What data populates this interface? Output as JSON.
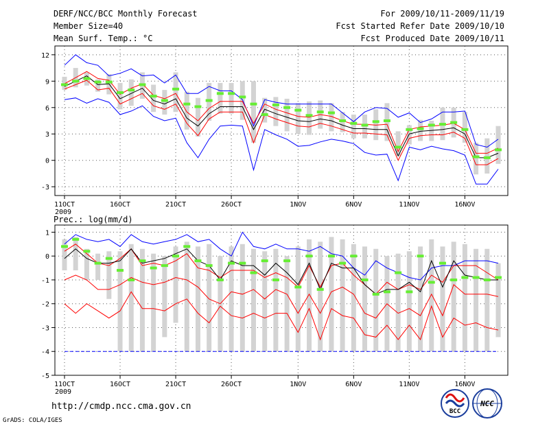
{
  "header": {
    "left": [
      "DERF/NCC/BCC Monthly Forecast",
      "Member Size=40",
      "Mean Surf. Temp.: °C"
    ],
    "right": [
      "For 2009/10/11-2009/11/19",
      "Fcst Started Refer Date 2009/10/10",
      "Fcst Produced Date 2009/10/11"
    ]
  },
  "precip_label": "Prec.: log(mm/d)",
  "url": "http://cmdp.ncc.cma.gov.cn",
  "credit": "GrADS: COLA/IGES",
  "logo_left": "BCC",
  "logo_right": "NCC",
  "colors": {
    "ensemble": "#0000ff",
    "spread": "#ff0000",
    "mean": "#000000",
    "bar": "#d3d3d3",
    "member": "#66ee33"
  },
  "chart_data": [
    {
      "type": "line",
      "title": "Mean Surf. Temp.: °C",
      "x_labels": [
        "11OCT",
        "16OCT",
        "21OCT",
        "26OCT",
        "1NOV",
        "6NOV",
        "11NOV",
        "16NOV"
      ],
      "x_label_days": [
        1,
        6,
        11,
        16,
        22,
        27,
        32,
        37
      ],
      "year_label": "2009",
      "ylim": [
        -4,
        13
      ],
      "yticks": [
        -3,
        0,
        3,
        6,
        9,
        12
      ],
      "days": 40,
      "series": [
        {
          "name": "max",
          "color": "#0000ff",
          "values": [
            10.8,
            12.0,
            11.1,
            10.8,
            9.6,
            9.9,
            10.4,
            9.6,
            9.7,
            8.8,
            9.7,
            7.6,
            7.6,
            8.4,
            7.9,
            7.9,
            6.9,
            3.9,
            6.9,
            6.6,
            6.4,
            6.4,
            6.4,
            6.4,
            6.4,
            5.4,
            4.4,
            5.5,
            6.0,
            5.9,
            4.9,
            5.4,
            4.3,
            4.7,
            5.5,
            5.5,
            5.6,
            1.8,
            1.5,
            2.4
          ]
        },
        {
          "name": "upper",
          "color": "#ff0000",
          "values": [
            8.7,
            9.4,
            10.1,
            9.3,
            9.1,
            7.5,
            8.2,
            8.7,
            7.4,
            7.0,
            7.6,
            5.5,
            4.5,
            5.9,
            6.7,
            6.7,
            6.7,
            4.2,
            6.4,
            5.8,
            5.4,
            5.0,
            4.9,
            5.2,
            5.0,
            4.5,
            4.1,
            4.1,
            4.0,
            4.1,
            1.0,
            3.5,
            3.8,
            3.9,
            4.0,
            4.2,
            3.5,
            0.8,
            0.8,
            1.4
          ]
        },
        {
          "name": "mean",
          "color": "#000000",
          "values": [
            8.4,
            9.0,
            9.6,
            8.6,
            8.7,
            7.0,
            7.6,
            8.2,
            6.8,
            6.4,
            7.0,
            4.8,
            3.9,
            5.3,
            6.1,
            6.1,
            6.1,
            3.5,
            5.8,
            5.3,
            4.9,
            4.5,
            4.4,
            4.7,
            4.5,
            4.0,
            3.6,
            3.6,
            3.5,
            3.5,
            0.5,
            3.0,
            3.3,
            3.4,
            3.5,
            3.7,
            3.0,
            0.3,
            0.3,
            0.8
          ]
        },
        {
          "name": "lower",
          "color": "#ff0000",
          "values": [
            8.1,
            8.6,
            9.1,
            8.0,
            8.2,
            6.4,
            7.0,
            7.6,
            6.2,
            5.8,
            6.4,
            4.2,
            2.8,
            4.7,
            5.5,
            5.5,
            5.5,
            2.0,
            5.2,
            4.7,
            4.3,
            3.9,
            3.8,
            4.2,
            3.9,
            3.5,
            3.1,
            3.1,
            3.0,
            2.9,
            0.0,
            2.5,
            2.8,
            2.9,
            2.9,
            3.2,
            2.5,
            -0.5,
            -0.5,
            0.2
          ]
        },
        {
          "name": "min",
          "color": "#0000ff",
          "values": [
            6.9,
            7.1,
            6.5,
            7.0,
            6.6,
            5.2,
            5.6,
            6.2,
            5.0,
            4.5,
            4.8,
            2.0,
            0.3,
            2.4,
            3.9,
            4.0,
            3.9,
            -1.1,
            3.5,
            2.9,
            2.4,
            1.6,
            1.7,
            2.1,
            2.4,
            2.2,
            1.9,
            0.9,
            0.6,
            0.7,
            -2.3,
            1.5,
            1.2,
            1.6,
            1.3,
            1.1,
            0.6,
            -2.7,
            -2.7,
            -1.0
          ]
        }
      ],
      "bars": [
        [
          8.0,
          9.5
        ],
        [
          8.3,
          10.5
        ],
        [
          8.5,
          10.0
        ],
        [
          7.8,
          9.2
        ],
        [
          7.5,
          9.8
        ],
        [
          5.8,
          8.8
        ],
        [
          6.2,
          9.2
        ],
        [
          7.0,
          10.0
        ],
        [
          5.5,
          8.6
        ],
        [
          5.2,
          8.0
        ],
        [
          5.5,
          10.0
        ],
        [
          3.5,
          7.8
        ],
        [
          2.7,
          7.1
        ],
        [
          4.5,
          8.8
        ],
        [
          5.3,
          8.8
        ],
        [
          5.3,
          8.8
        ],
        [
          4.6,
          9.0
        ],
        [
          2.0,
          9.0
        ],
        [
          4.3,
          7.1
        ],
        [
          3.9,
          7.2
        ],
        [
          3.3,
          7.0
        ],
        [
          3.0,
          6.5
        ],
        [
          2.9,
          6.7
        ],
        [
          3.6,
          6.8
        ],
        [
          3.3,
          6.5
        ],
        [
          3.2,
          5.5
        ],
        [
          2.5,
          5.2
        ],
        [
          2.5,
          5.2
        ],
        [
          2.3,
          5.8
        ],
        [
          2.2,
          6.5
        ],
        [
          0.5,
          3.3
        ],
        [
          1.8,
          4.0
        ],
        [
          2.2,
          4.6
        ],
        [
          2.2,
          4.5
        ],
        [
          2.3,
          6.0
        ],
        [
          2.6,
          6.0
        ],
        [
          2.0,
          5.5
        ],
        [
          -1.6,
          2.0
        ],
        [
          -1.5,
          2.5
        ],
        [
          -0.4,
          3.9
        ]
      ],
      "members": [
        8.6,
        9.0,
        9.3,
        8.9,
        8.9,
        7.7,
        8.0,
        8.6,
        7.3,
        6.8,
        8.1,
        6.4,
        6.1,
        6.8,
        7.6,
        7.6,
        7.2,
        6.4,
        5.2,
        6.3,
        6.0,
        5.7,
        5.1,
        5.5,
        5.4,
        4.5,
        4.2,
        4.0,
        4.4,
        4.5,
        1.5,
        3.5,
        3.6,
        4.0,
        4.1,
        4.3,
        3.5,
        0.4,
        0.3,
        1.2
      ]
    },
    {
      "type": "line",
      "title": "Prec.: log(mm/d)",
      "x_labels": [
        "11OCT",
        "16OCT",
        "21OCT",
        "26OCT",
        "1NOV",
        "6NOV",
        "11NOV",
        "16NOV"
      ],
      "x_label_days": [
        1,
        6,
        11,
        16,
        22,
        27,
        32,
        37
      ],
      "year_label": "2009",
      "ylim": [
        -5,
        1.3
      ],
      "yticks": [
        -5,
        -4,
        -3,
        -2,
        -1,
        0,
        1
      ],
      "days": 40,
      "floor_line": -4,
      "series": [
        {
          "name": "max",
          "color": "#0000ff",
          "values": [
            0.5,
            0.9,
            0.7,
            0.6,
            0.7,
            0.4,
            0.9,
            0.6,
            0.5,
            0.6,
            0.7,
            0.9,
            0.6,
            0.7,
            0.3,
            0.0,
            1.0,
            0.4,
            0.3,
            0.5,
            0.3,
            0.3,
            0.2,
            0.4,
            0.1,
            0.0,
            -0.5,
            -0.8,
            -0.2,
            -0.5,
            -0.7,
            -0.9,
            -1.0,
            -0.5,
            -0.4,
            -0.4,
            -0.2,
            -0.2,
            -0.2,
            -0.3
          ]
        },
        {
          "name": "upper",
          "color": "#ff0000",
          "values": [
            0.2,
            0.5,
            0.1,
            -0.3,
            -0.4,
            -0.1,
            0.3,
            -0.4,
            -0.3,
            -0.4,
            -0.2,
            0.1,
            -0.5,
            -0.6,
            -0.9,
            -0.6,
            -0.6,
            -0.6,
            -0.9,
            -0.7,
            -0.9,
            -1.3,
            -0.4,
            -1.3,
            -0.4,
            -0.3,
            -0.8,
            -1.2,
            -1.6,
            -1.1,
            -1.4,
            -1.2,
            -1.4,
            -0.8,
            -1.1,
            -0.4,
            -0.4,
            -0.4,
            -0.7,
            -1.0
          ]
        },
        {
          "name": "mean",
          "color": "#000000",
          "values": [
            -0.1,
            0.3,
            -0.1,
            -0.3,
            -0.3,
            -0.2,
            0.3,
            -0.3,
            -0.2,
            -0.1,
            0.1,
            0.3,
            -0.2,
            -0.4,
            -1.0,
            -0.2,
            -0.4,
            -0.4,
            -0.8,
            -0.3,
            -0.7,
            -1.2,
            -0.3,
            -1.4,
            -0.3,
            -0.5,
            -0.5,
            -1.2,
            -1.6,
            -1.4,
            -1.4,
            -1.1,
            -1.5,
            -0.2,
            -1.3,
            -0.2,
            -0.8,
            -0.9,
            -1.0,
            -1.0
          ]
        },
        {
          "name": "lower",
          "color": "#ff0000",
          "values": [
            -1.0,
            -0.8,
            -1.0,
            -1.4,
            -1.4,
            -1.2,
            -0.9,
            -1.1,
            -1.2,
            -1.1,
            -0.9,
            -1.0,
            -1.3,
            -1.8,
            -2.0,
            -1.5,
            -1.6,
            -1.4,
            -1.8,
            -1.4,
            -1.6,
            -2.4,
            -1.6,
            -2.4,
            -1.5,
            -1.3,
            -1.6,
            -2.4,
            -2.6,
            -2.0,
            -2.4,
            -2.2,
            -2.5,
            -1.6,
            -2.5,
            -1.2,
            -1.6,
            -1.6,
            -1.6,
            -1.7
          ]
        },
        {
          "name": "min",
          "color": "#ff0000",
          "values": [
            -2.0,
            -2.4,
            -2.0,
            -2.3,
            -2.6,
            -2.3,
            -1.5,
            -2.2,
            -2.2,
            -2.3,
            -2.0,
            -1.8,
            -2.4,
            -2.8,
            -2.1,
            -2.5,
            -2.6,
            -2.4,
            -2.6,
            -2.4,
            -2.4,
            -3.2,
            -2.2,
            -3.5,
            -2.2,
            -2.5,
            -2.6,
            -3.3,
            -3.4,
            -2.9,
            -3.5,
            -2.9,
            -3.5,
            -2.1,
            -3.4,
            -2.6,
            -2.9,
            -2.8,
            -3.0,
            -3.1
          ]
        }
      ],
      "bars": [
        [
          -0.6,
          0.7
        ],
        [
          -0.6,
          0.8
        ],
        [
          -1.0,
          0.3
        ],
        [
          -1.0,
          0.1
        ],
        [
          -1.8,
          0.2
        ],
        [
          -4.0,
          0.2
        ],
        [
          -4.0,
          0.5
        ],
        [
          -4.0,
          0.3
        ],
        [
          -4.0,
          0.1
        ],
        [
          -3.4,
          0.0
        ],
        [
          -2.8,
          0.4
        ],
        [
          -4.0,
          0.6
        ],
        [
          -4.0,
          0.4
        ],
        [
          -4.0,
          0.5
        ],
        [
          -4.0,
          0.0
        ],
        [
          -4.0,
          0.4
        ],
        [
          -4.0,
          0.5
        ],
        [
          -4.0,
          0.3
        ],
        [
          -4.0,
          0.2
        ],
        [
          -4.0,
          0.3
        ],
        [
          -4.0,
          0.0
        ],
        [
          -4.0,
          0.4
        ],
        [
          -4.0,
          0.7
        ],
        [
          -4.0,
          0.6
        ],
        [
          -4.0,
          0.8
        ],
        [
          -4.0,
          0.7
        ],
        [
          -4.0,
          0.5
        ],
        [
          -4.0,
          0.4
        ],
        [
          -4.0,
          0.3
        ],
        [
          -4.0,
          0.0
        ],
        [
          -4.0,
          0.1
        ],
        [
          -4.0,
          0.2
        ],
        [
          -4.0,
          0.4
        ],
        [
          -4.0,
          0.7
        ],
        [
          -4.0,
          0.4
        ],
        [
          -4.0,
          0.6
        ],
        [
          -4.0,
          0.5
        ],
        [
          -4.0,
          0.3
        ],
        [
          -4.0,
          0.3
        ],
        [
          -3.4,
          -0.3
        ]
      ],
      "members": [
        0.4,
        0.7,
        0.2,
        -0.3,
        -0.1,
        -0.6,
        -1.0,
        -0.2,
        -0.5,
        -0.4,
        0.0,
        0.4,
        -0.2,
        -0.4,
        -1.0,
        -0.3,
        -0.3,
        -0.7,
        -0.2,
        -1.0,
        -0.2,
        -1.3,
        0.0,
        -1.4,
        0.0,
        -0.3,
        0.0,
        -1.0,
        -1.6,
        -1.5,
        -0.7,
        -1.5,
        0.0,
        -1.1,
        -0.3,
        -1.0,
        -0.9,
        -0.9,
        -1.0,
        -0.9
      ]
    }
  ]
}
